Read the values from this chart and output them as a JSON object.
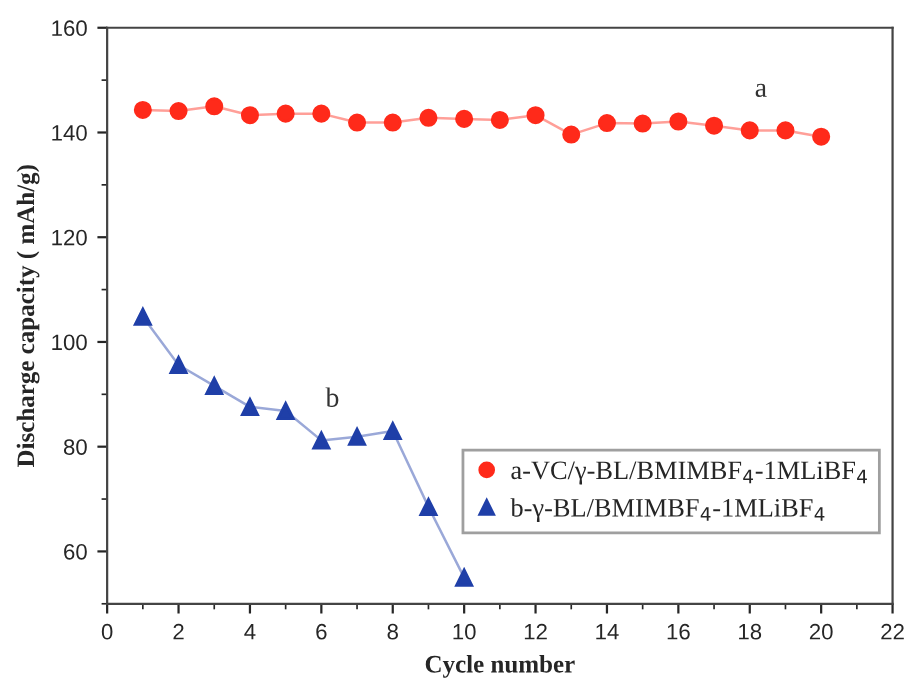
{
  "chart_data": {
    "type": "line",
    "xlabel": "Cycle number",
    "ylabel": "Discharge capacity ( mAh/g)",
    "x": [
      1,
      2,
      3,
      4,
      5,
      6,
      7,
      8,
      9,
      10,
      11,
      12,
      13,
      14,
      15,
      16,
      17,
      18,
      19,
      20
    ],
    "series": [
      {
        "name": "a-VC/γ-BL/BMIMBF$_{4}$-1MLiBF$_{4}$",
        "color": "#ff2a1a",
        "marker": "circle",
        "values": [
          144.3,
          144.1,
          145.0,
          143.3,
          143.6,
          143.6,
          141.9,
          141.9,
          142.8,
          142.6,
          142.4,
          143.3,
          139.6,
          141.8,
          141.7,
          142.1,
          141.3,
          140.4,
          140.4,
          139.2
        ]
      },
      {
        "name": "b-γ-BL/BMIMBF$_{4}$-1MLiBF$_{4}$",
        "color": "#1f3fa8",
        "marker": "triangle",
        "x": [
          1,
          2,
          3,
          4,
          5,
          6,
          7,
          8,
          9,
          10
        ],
        "values": [
          104.8,
          95.6,
          91.6,
          87.6,
          86.8,
          81.2,
          81.9,
          83.0,
          68.5,
          55.0
        ]
      }
    ],
    "annotations": [
      "a",
      "b"
    ],
    "xlim": [
      0,
      22
    ],
    "xticks": [
      0,
      2,
      4,
      6,
      8,
      10,
      12,
      14,
      16,
      18,
      20,
      22
    ],
    "ylim": [
      50,
      160
    ],
    "yticks": [
      60,
      80,
      100,
      120,
      140,
      160
    ],
    "grid": false,
    "legend": "bottom right"
  }
}
